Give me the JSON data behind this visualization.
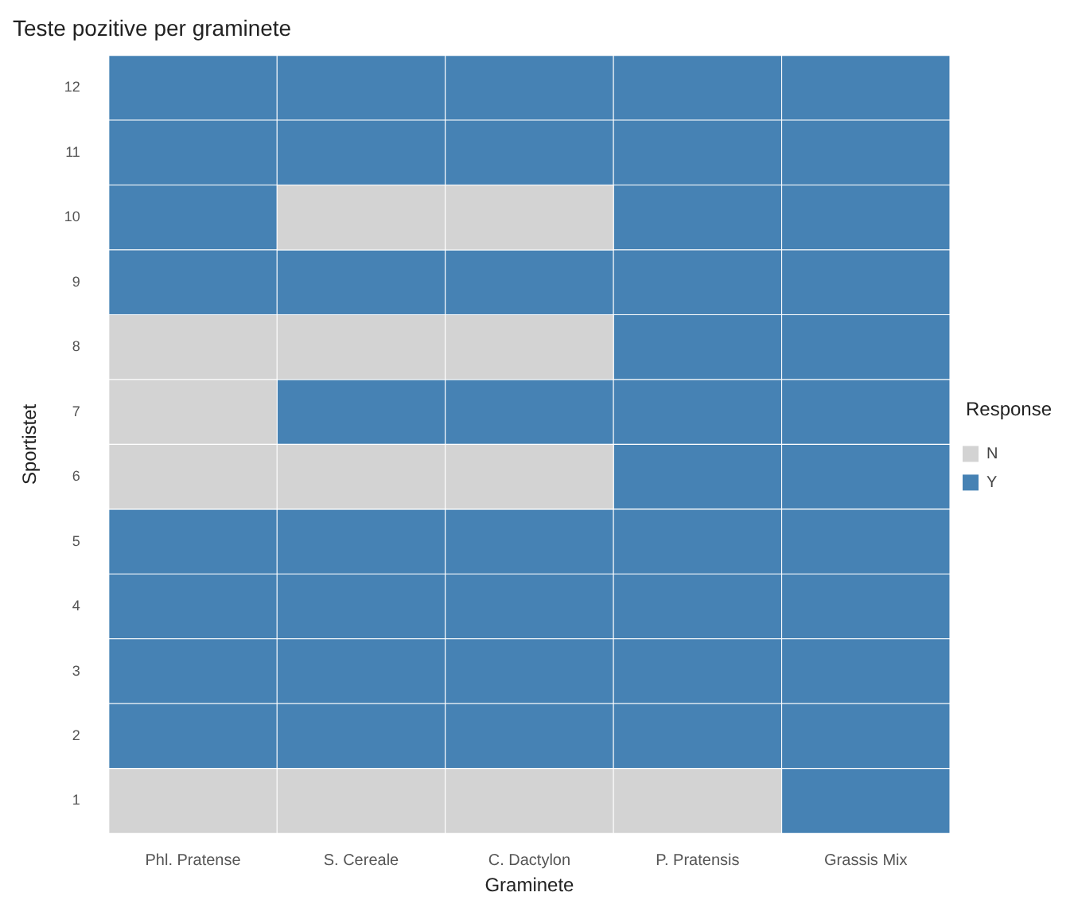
{
  "chart_data": {
    "type": "bar",
    "title": "Teste pozitive per graminete",
    "xlabel": "Graminete",
    "ylabel": "Sportistet",
    "legend_title": "Response",
    "legend": "right",
    "categories": [
      "Phl. Pratense",
      "S. Cereale",
      "C. Dactylon",
      "P. Pratensis",
      "Grassis Mix"
    ],
    "ylim": [
      0.5,
      12.5
    ],
    "yticks": [
      1,
      2,
      3,
      4,
      5,
      6,
      7,
      8,
      9,
      10,
      11,
      12
    ],
    "series": [
      {
        "name": "N",
        "color": "#d3d3d3",
        "x": [
          "S. Cereale",
          "C. Dactylon",
          "Phl. Pratense",
          "S. Cereale",
          "C. Dactylon",
          "Phl. Pratense",
          "Phl. Pratense",
          "S. Cereale",
          "C. Dactylon",
          "Phl. Pratense",
          "S. Cereale",
          "C. Dactylon",
          "P. Pratensis"
        ],
        "base": [
          9.5,
          9.5,
          7.5,
          7.5,
          7.5,
          6.5,
          5.5,
          5.5,
          5.5,
          0.5,
          0.5,
          0.5,
          0.5
        ],
        "values": [
          1,
          1,
          1,
          1,
          1,
          1,
          1,
          1,
          1,
          1,
          1,
          1,
          1
        ]
      },
      {
        "name": "Y",
        "color": "#4682b4",
        "x": [
          "Phl. Pratense",
          "S. Cereale",
          "C. Dactylon",
          "P. Pratensis",
          "Grassis Mix",
          "Phl. Pratense",
          "S. Cereale",
          "C. Dactylon",
          "P. Pratensis",
          "Grassis Mix",
          "Phl. Pratense",
          "P. Pratensis",
          "Grassis Mix",
          "Phl. Pratense",
          "S. Cereale",
          "C. Dactylon",
          "P. Pratensis",
          "Grassis Mix",
          "P. Pratensis",
          "Grassis Mix",
          "S. Cereale",
          "C. Dactylon",
          "P. Pratensis",
          "Grassis Mix",
          "P. Pratensis",
          "Grassis Mix",
          "Phl. Pratense",
          "S. Cereale",
          "C. Dactylon",
          "P. Pratensis",
          "Grassis Mix",
          "Phl. Pratense",
          "S. Cereale",
          "C. Dactylon",
          "P. Pratensis",
          "Grassis Mix",
          "Phl. Pratense",
          "S. Cereale",
          "C. Dactylon",
          "P. Pratensis",
          "Grassis Mix",
          "Phl. Pratense",
          "S. Cereale",
          "C. Dactylon",
          "P. Pratensis",
          "Grassis Mix",
          "Grassis Mix"
        ],
        "base": [
          11.5,
          11.5,
          11.5,
          11.5,
          11.5,
          10.5,
          10.5,
          10.5,
          10.5,
          10.5,
          9.5,
          9.5,
          9.5,
          8.5,
          8.5,
          8.5,
          8.5,
          8.5,
          7.5,
          7.5,
          6.5,
          6.5,
          6.5,
          6.5,
          5.5,
          5.5,
          4.5,
          4.5,
          4.5,
          4.5,
          4.5,
          3.5,
          3.5,
          3.5,
          3.5,
          3.5,
          2.5,
          2.5,
          2.5,
          2.5,
          2.5,
          1.5,
          1.5,
          1.5,
          1.5,
          1.5,
          0.5
        ],
        "values": [
          1,
          1,
          1,
          1,
          1,
          1,
          1,
          1,
          1,
          1,
          1,
          1,
          1,
          1,
          1,
          1,
          1,
          1,
          1,
          1,
          1,
          1,
          1,
          1,
          1,
          1,
          1,
          1,
          1,
          1,
          1,
          1,
          1,
          1,
          1,
          1,
          1,
          1,
          1,
          1,
          1,
          1,
          1,
          1,
          1,
          1,
          1
        ]
      }
    ]
  }
}
